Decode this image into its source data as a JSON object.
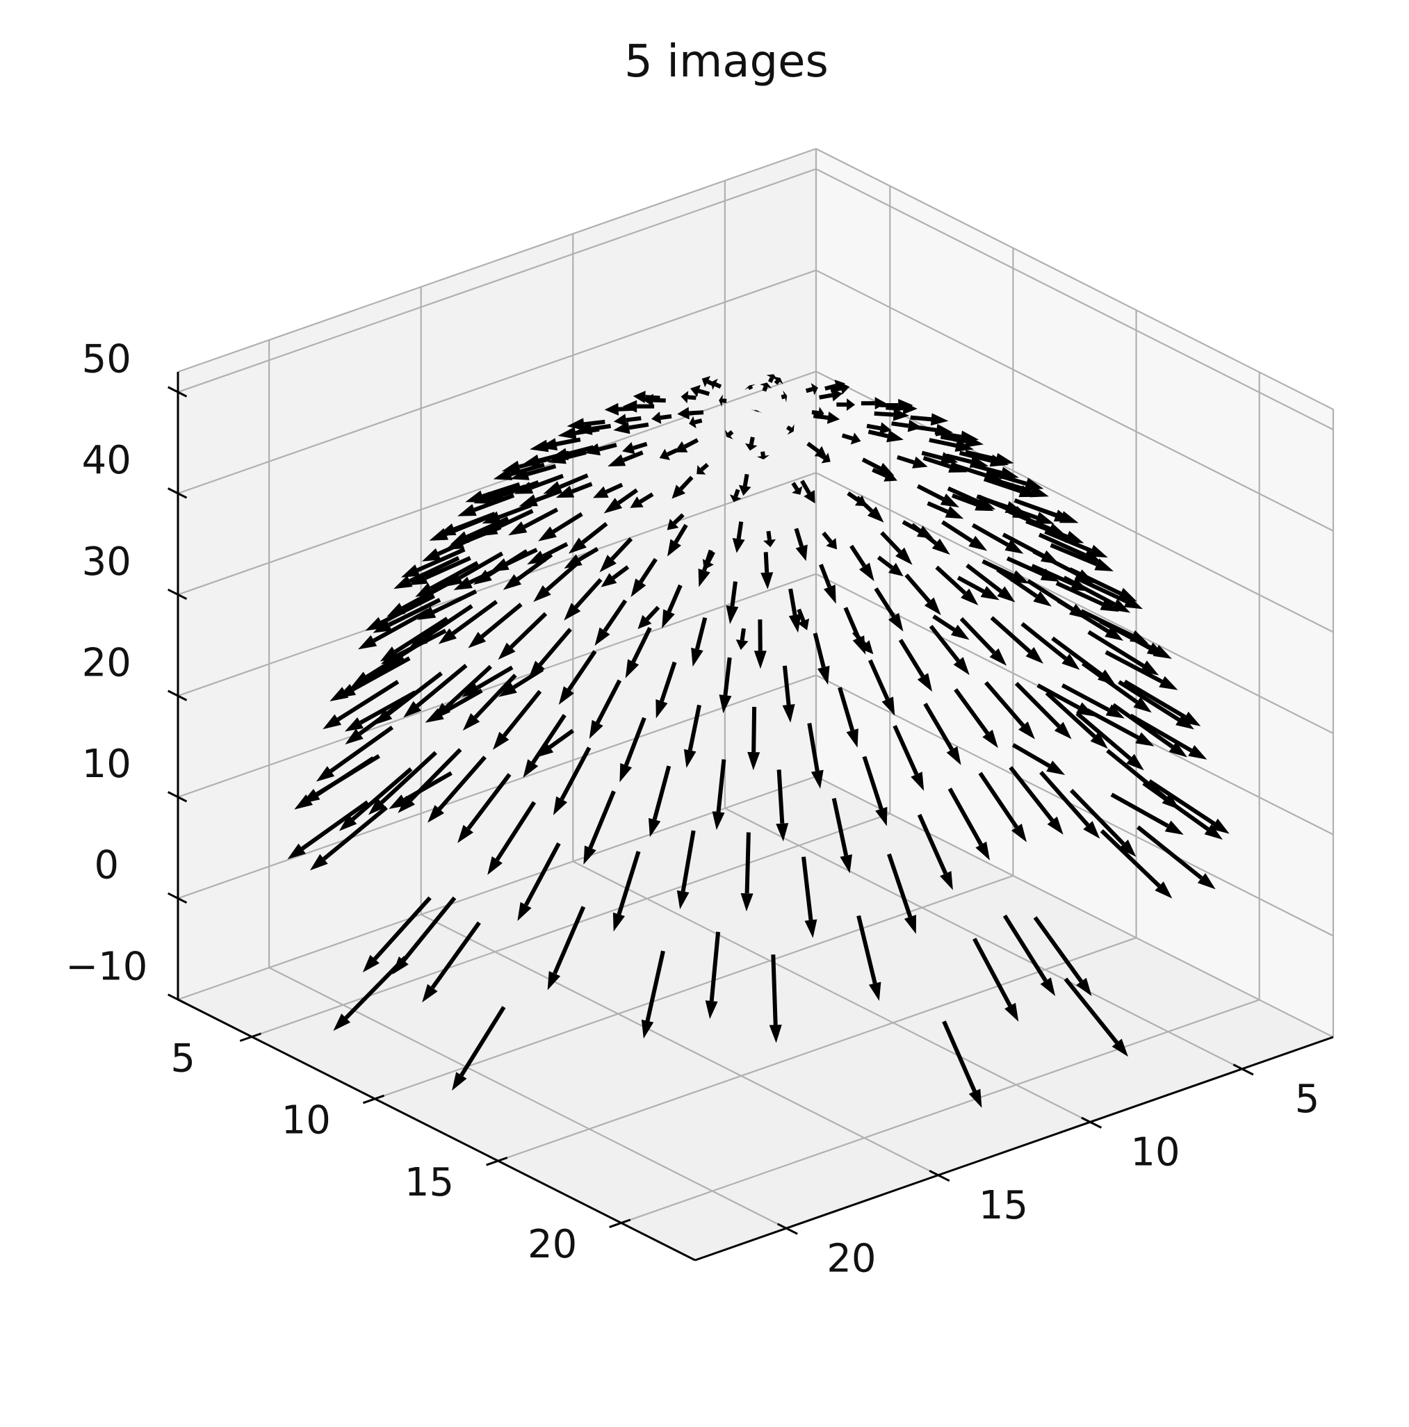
{
  "chart_data": {
    "type": "quiver3d",
    "title": "5 images",
    "xlabel": "",
    "ylabel": "",
    "zlabel": "",
    "x_ticks": [
      "5",
      "10",
      "15",
      "20"
    ],
    "y_ticks": [
      "5",
      "10",
      "15",
      "20"
    ],
    "z_ticks": [
      "−10",
      "0",
      "10",
      "20",
      "30",
      "40",
      "50"
    ],
    "xlim": [
      2,
      23
    ],
    "ylim": [
      2,
      23
    ],
    "zlim": [
      -10,
      52
    ],
    "grid": true,
    "arrow_color": "#000000",
    "field": {
      "description": "radial vector field on a dome surface",
      "center": [
        12,
        12
      ],
      "grid_step": 1,
      "peak_z": 49
    }
  },
  "colors": {
    "pane_left": "#f2f2f2",
    "pane_right": "#f7f7f7",
    "pane_floor": "#f0f0f0",
    "grid": "#b0b0b0",
    "arrows": "#000000"
  }
}
